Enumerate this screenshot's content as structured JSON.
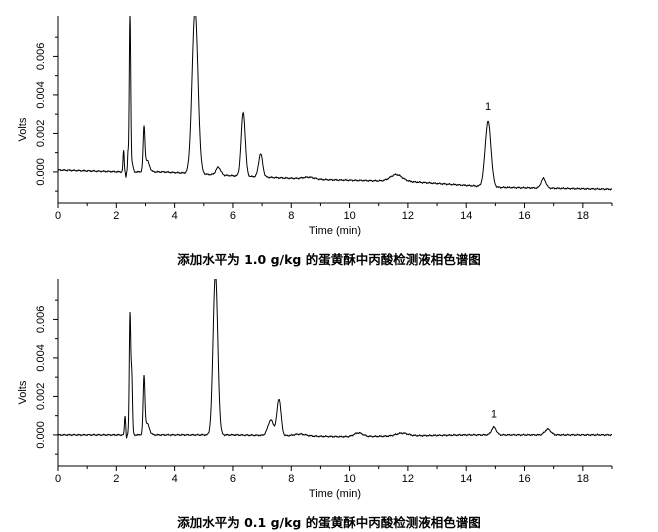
{
  "chart_data": [
    {
      "type": "line",
      "caption": "添加水平为 1.0 g/kg 的蛋黄酥中丙酸检测液相色谱图",
      "xlabel": "Time (min)",
      "ylabel": "Volts",
      "xlim": [
        0,
        19
      ],
      "ylim": [
        -0.0012,
        0.0081
      ],
      "x_ticks": [
        0,
        2,
        4,
        6,
        8,
        10,
        12,
        14,
        16,
        18
      ],
      "y_ticks": [
        0.0,
        0.002,
        0.004,
        0.006
      ],
      "y_tick_labels": [
        "0.000",
        "0.002",
        "0.004",
        "0.006"
      ],
      "baseline": [
        [
          0,
          0.0001
        ],
        [
          2.2,
          0.0
        ],
        [
          3.6,
          0.0
        ],
        [
          6,
          -0.0002
        ],
        [
          9,
          -0.0004
        ],
        [
          12,
          -0.0005
        ],
        [
          15,
          -0.0008
        ],
        [
          19,
          -0.0009
        ]
      ],
      "peaks": [
        {
          "x": 2.25,
          "y": 0.0011,
          "w": 0.02
        },
        {
          "x": 2.33,
          "y": -0.0003,
          "w": 0.01
        },
        {
          "x": 2.4,
          "y": 0.0009,
          "w": 0.015
        },
        {
          "x": 2.47,
          "y": 0.0082,
          "w": 0.025
        },
        {
          "x": 2.55,
          "y": 0.0004,
          "w": 0.03
        },
        {
          "x": 2.95,
          "y": 0.0021,
          "w": 0.03
        },
        {
          "x": 3.05,
          "y": 0.0006,
          "w": 0.08
        },
        {
          "x": 4.7,
          "y": 0.0085,
          "w": 0.1
        },
        {
          "x": 5.5,
          "y": 0.0004,
          "w": 0.08
        },
        {
          "x": 6.35,
          "y": 0.0033,
          "w": 0.07
        },
        {
          "x": 6.95,
          "y": 0.0012,
          "w": 0.07
        },
        {
          "x": 8.6,
          "y": 0.0001,
          "w": 0.2
        },
        {
          "x": 11.6,
          "y": 0.00035,
          "w": 0.2
        },
        {
          "x": 14.75,
          "y": 0.0034,
          "w": 0.1
        },
        {
          "x": 16.65,
          "y": 0.0005,
          "w": 0.08
        }
      ],
      "annotations": [
        {
          "text": "1",
          "x": 14.75,
          "y": 0.003
        }
      ]
    },
    {
      "type": "line",
      "caption": "添加水平为 0.1 g/kg 的蛋黄酥中丙酸检测液相色谱图",
      "xlabel": "Time (min)",
      "ylabel": "Volts",
      "xlim": [
        0,
        19
      ],
      "ylim": [
        -0.0012,
        0.0081
      ],
      "x_ticks": [
        0,
        2,
        4,
        6,
        8,
        10,
        12,
        14,
        16,
        18
      ],
      "y_ticks": [
        0.0,
        0.002,
        0.004,
        0.006
      ],
      "y_tick_labels": [
        "0.000",
        "0.002",
        "0.004",
        "0.006"
      ],
      "baseline": [
        [
          0,
          0.0
        ],
        [
          6,
          0.0
        ],
        [
          10,
          -0.0001
        ],
        [
          14,
          0.0
        ],
        [
          19,
          0.0
        ]
      ],
      "peaks": [
        {
          "x": 2.3,
          "y": 0.001,
          "w": 0.02
        },
        {
          "x": 2.35,
          "y": -0.0002,
          "w": 0.01
        },
        {
          "x": 2.47,
          "y": 0.0062,
          "w": 0.025
        },
        {
          "x": 2.53,
          "y": 0.0031,
          "w": 0.025
        },
        {
          "x": 2.95,
          "y": 0.0028,
          "w": 0.03
        },
        {
          "x": 3.05,
          "y": 0.0006,
          "w": 0.08
        },
        {
          "x": 5.4,
          "y": 0.0084,
          "w": 0.08
        },
        {
          "x": 7.3,
          "y": 0.0008,
          "w": 0.1
        },
        {
          "x": 7.58,
          "y": 0.0019,
          "w": 0.07
        },
        {
          "x": 8.3,
          "y": 0.0001,
          "w": 0.2
        },
        {
          "x": 10.3,
          "y": 0.0002,
          "w": 0.15
        },
        {
          "x": 11.8,
          "y": 0.00015,
          "w": 0.2
        },
        {
          "x": 14.95,
          "y": 0.0004,
          "w": 0.08
        },
        {
          "x": 16.8,
          "y": 0.0003,
          "w": 0.1
        }
      ],
      "annotations": [
        {
          "text": "1",
          "x": 14.95,
          "y": 0.0007
        }
      ]
    }
  ]
}
